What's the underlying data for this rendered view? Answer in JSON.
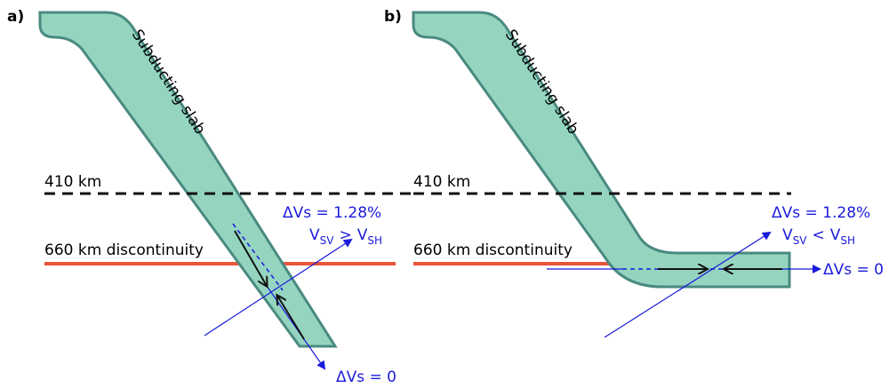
{
  "panels": [
    {
      "label": "a)",
      "slab": "Subducting slab",
      "upper": "410 km",
      "lower": "660 km discontinuity",
      "anisotropy": "ΔVs = 1.28%",
      "relation": {
        "v1": "V",
        "sub1": "SV",
        "op": ">",
        "v2": "V",
        "sub2": "SH"
      },
      "zero": "ΔVs = 0"
    },
    {
      "label": "b)",
      "slab": "Subducting slab",
      "upper": "410 km",
      "lower": "660 km discontinuity",
      "anisotropy": "ΔVs = 1.28%",
      "relation": {
        "v1": "V",
        "sub1": "SV",
        "op": "<",
        "v2": "V",
        "sub2": "SH"
      },
      "zero": "ΔVs = 0"
    }
  ]
}
